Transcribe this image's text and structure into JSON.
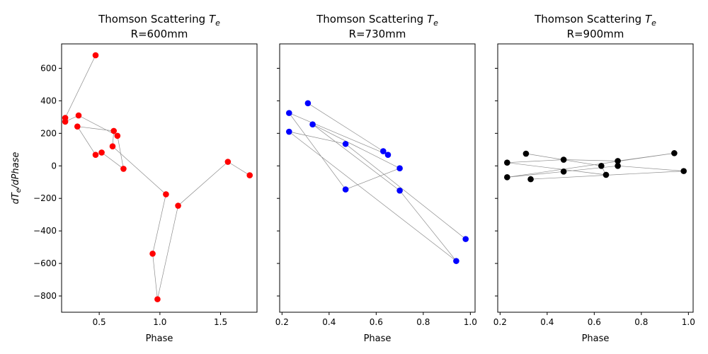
{
  "colors": {
    "connector": "#8c8c8c",
    "frame": "#000000"
  },
  "chart_data": [
    {
      "type": "scatter",
      "title": "Thomson Scattering",
      "title_symbol": "T",
      "title_symbol_sub": "e",
      "subtitle": "R=600mm",
      "xlabel": "Phase",
      "ylabel_prefix": "dT",
      "ylabel_sub": "e",
      "ylabel_suffix": "/dPhase",
      "xlim": [
        0.19,
        1.8
      ],
      "ylim": [
        -900,
        750
      ],
      "xticks": [
        0.5,
        1.0,
        1.5
      ],
      "xtick_labels": [
        "0.5",
        "1.0",
        "1.5"
      ],
      "yticks": [
        600,
        400,
        200,
        0,
        -200,
        -400,
        -600,
        -800
      ],
      "ytick_labels": [
        "600",
        "400",
        "200",
        "0",
        "−200",
        "−400",
        "−600",
        "−800"
      ],
      "show_ytick_labels": true,
      "marker_color": "#ff0000",
      "x": [
        0.47,
        0.22,
        0.22,
        0.33,
        0.65,
        0.7,
        0.52,
        0.47,
        0.32,
        0.62,
        0.61,
        1.05,
        0.94,
        0.98,
        1.15,
        1.56,
        1.74
      ],
      "y": [
        680,
        295,
        272,
        310,
        185,
        -18,
        82,
        68,
        242,
        215,
        120,
        -175,
        -540,
        -820,
        -245,
        25,
        -58
      ]
    },
    {
      "type": "scatter",
      "title": "Thomson Scattering",
      "title_symbol": "T",
      "title_symbol_sub": "e",
      "subtitle": "R=730mm",
      "xlabel": "Phase",
      "xlim": [
        0.19,
        1.02
      ],
      "ylim": [
        -900,
        750
      ],
      "xticks": [
        0.2,
        0.4,
        0.6,
        0.8,
        1.0
      ],
      "xtick_labels": [
        "0.2",
        "0.4",
        "0.6",
        "0.8",
        "1.0"
      ],
      "yticks": [
        600,
        400,
        200,
        0,
        -200,
        -400,
        -600,
        -800
      ],
      "show_ytick_labels": false,
      "marker_color": "#0000ff",
      "x": [
        0.31,
        0.63,
        0.65,
        0.23,
        0.47,
        0.7,
        0.33,
        0.7,
        0.94,
        0.23,
        0.47,
        0.98
      ],
      "y": [
        385,
        90,
        68,
        325,
        -145,
        -15,
        255,
        -152,
        -585,
        210,
        135,
        -450
      ]
    },
    {
      "type": "scatter",
      "title": "Thomson Scattering",
      "title_symbol": "T",
      "title_symbol_sub": "e",
      "subtitle": "R=900mm",
      "xlabel": "Phase",
      "xlim": [
        0.19,
        1.02
      ],
      "ylim": [
        -900,
        750
      ],
      "xticks": [
        0.2,
        0.4,
        0.6,
        0.8,
        1.0
      ],
      "xtick_labels": [
        "0.2",
        "0.4",
        "0.6",
        "0.8",
        "1.0"
      ],
      "yticks": [
        600,
        400,
        200,
        0,
        -200,
        -400,
        -600,
        -800
      ],
      "show_ytick_labels": false,
      "marker_color": "#000000",
      "x": [
        0.31,
        0.63,
        0.65,
        0.23,
        0.47,
        0.7,
        0.94,
        0.23,
        0.47,
        0.7,
        0.98,
        0.33
      ],
      "y": [
        75,
        0,
        -55,
        20,
        38,
        30,
        78,
        -70,
        -35,
        0,
        -32,
        -82
      ]
    }
  ]
}
